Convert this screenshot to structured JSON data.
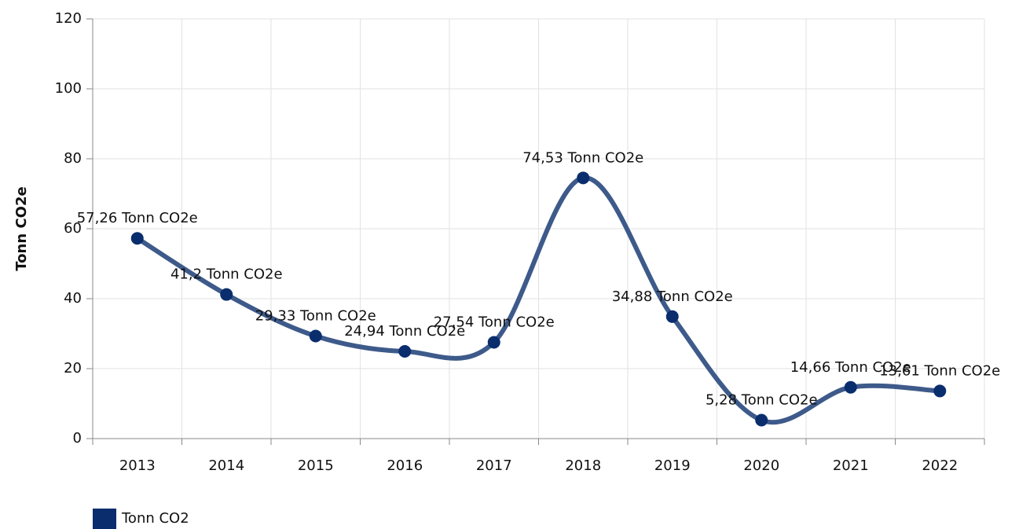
{
  "chart_data": {
    "type": "line",
    "y_label": "Tonn CO2e",
    "categories": [
      "2013",
      "2014",
      "2015",
      "2016",
      "2017",
      "2018",
      "2019",
      "2020",
      "2021",
      "2022"
    ],
    "series": [
      {
        "name": "Tonn CO2",
        "color": "#0a2d6e",
        "line_color": "#3d5a8a",
        "values": [
          57.26,
          41.2,
          29.33,
          24.94,
          27.54,
          74.53,
          34.88,
          5.28,
          14.66,
          13.61
        ],
        "value_labels": [
          "57,26 Tonn CO2e",
          "41,2 Tonn CO2e",
          "29,33 Tonn CO2e",
          "24,94 Tonn CO2e",
          "27,54 Tonn CO2e",
          "74,53 Tonn CO2e",
          "34,88 Tonn CO2e",
          "5,28 Tonn CO2e",
          "14,66 Tonn CO2e",
          "13,61 Tonn CO2e"
        ]
      }
    ],
    "ylim": [
      0,
      120
    ],
    "yticks": [
      0,
      20,
      40,
      60,
      80,
      100,
      120
    ],
    "grid": true,
    "legend": "bottom-left"
  }
}
